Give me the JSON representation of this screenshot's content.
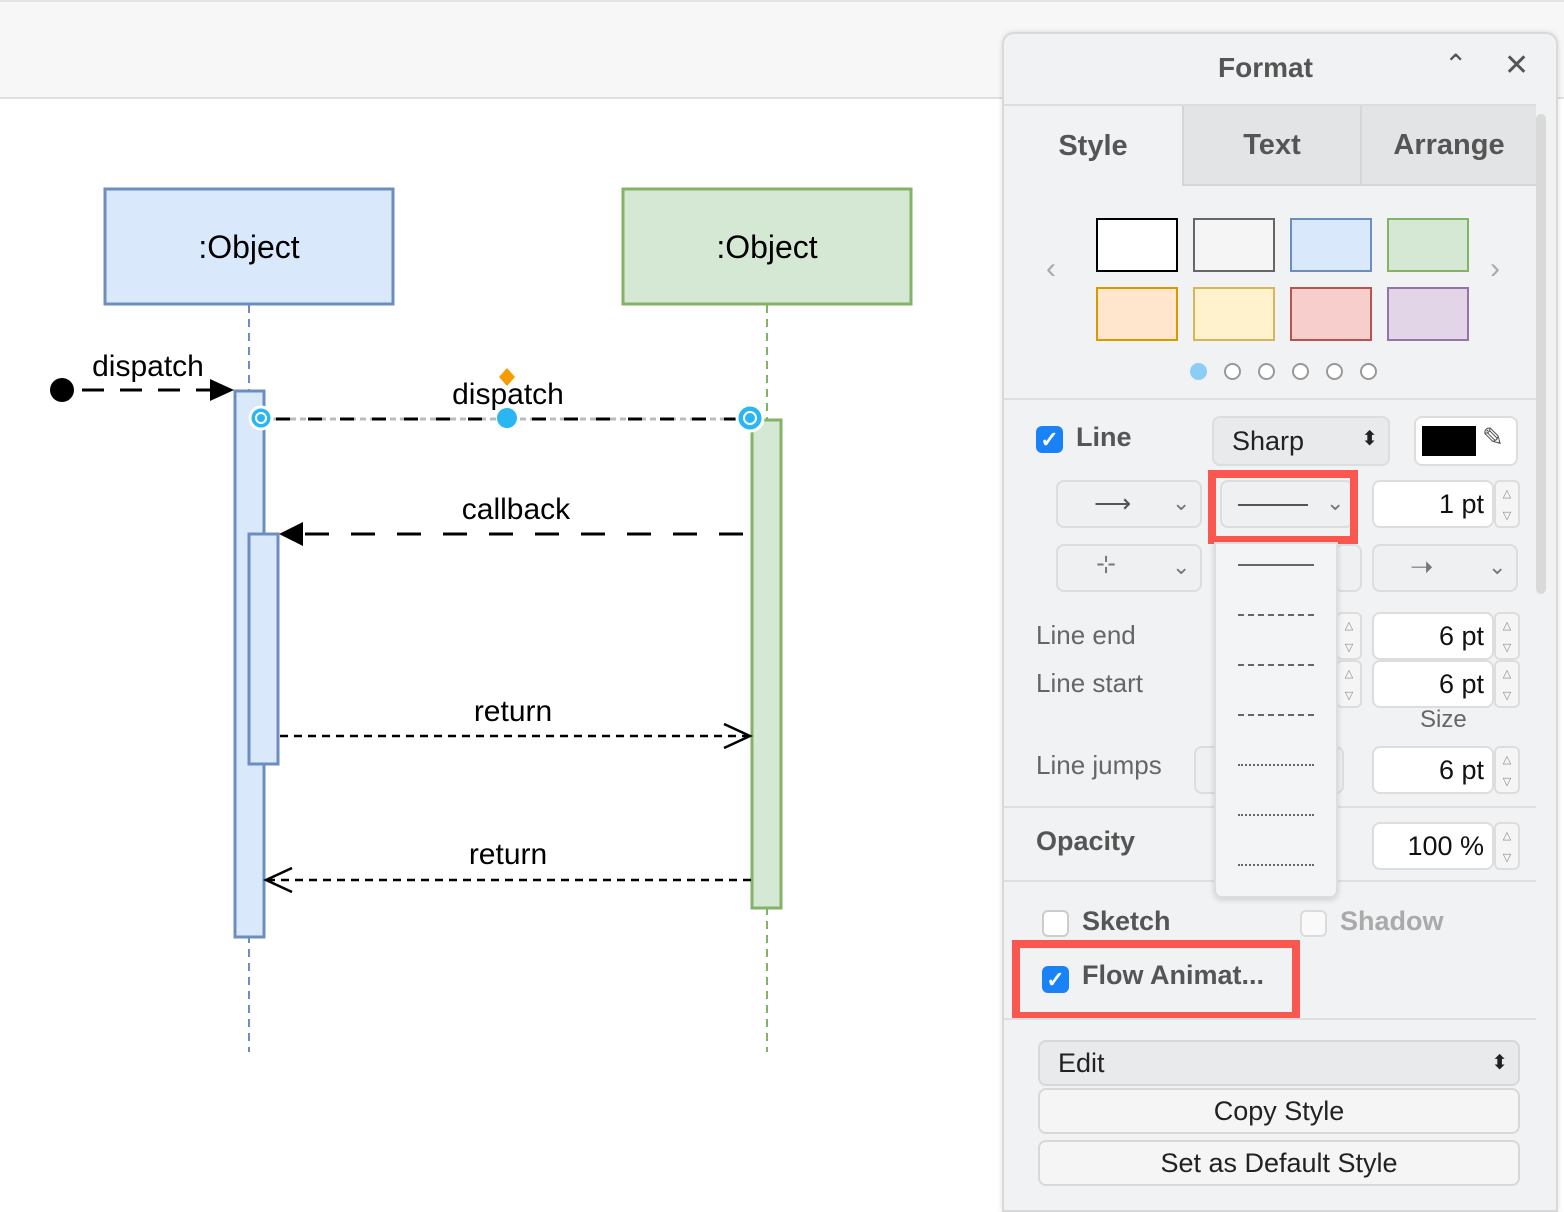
{
  "diagram": {
    "lifelines": [
      {
        "label": ":Object",
        "fill": "#dae8fc",
        "stroke": "#6c8ebf"
      },
      {
        "label": ":Object",
        "fill": "#d5e8d4",
        "stroke": "#82b366"
      }
    ],
    "messages": [
      "dispatch",
      "dispatch",
      "callback",
      "return",
      "return"
    ]
  },
  "panel": {
    "title": "Format",
    "tabs": [
      "Style",
      "Text",
      "Arrange"
    ],
    "swatches": [
      [
        "#ffffff",
        "#000000"
      ],
      [
        "#f5f5f5",
        "#666666"
      ],
      [
        "#dae8fc",
        "#6c8ebf"
      ],
      [
        "#d5e8d4",
        "#82b366"
      ],
      [
        "#ffe6cc",
        "#d79b00"
      ],
      [
        "#fff2cc",
        "#d6b656"
      ],
      [
        "#f8cecc",
        "#b85450"
      ],
      [
        "#e1d5e7",
        "#9673a6"
      ]
    ],
    "swatch_pages": 6,
    "swatch_page_active": 1,
    "line": {
      "label": "Line",
      "checked": true,
      "style": "Sharp",
      "color": "#000000",
      "width": "1 pt",
      "pattern_options": [
        "solid",
        "dashed",
        "dashed",
        "dashed",
        "dotted",
        "dotted",
        "dotted"
      ]
    },
    "line_end": {
      "label": "Line end",
      "value": "6 pt"
    },
    "line_start": {
      "label": "Line start",
      "value": "6 pt"
    },
    "size_label": "Size",
    "line_jumps": {
      "label": "Line jumps",
      "value": "6 pt"
    },
    "opacity": {
      "label": "Opacity",
      "value": "100 %"
    },
    "sketch": {
      "label": "Sketch",
      "checked": false
    },
    "shadow": {
      "label": "Shadow",
      "checked": false
    },
    "flow": {
      "label": "Flow Animat...",
      "checked": true
    },
    "edit": "Edit",
    "copy_style": "Copy Style",
    "default_style": "Set as Default Style",
    "highlight": "#f9574f"
  }
}
